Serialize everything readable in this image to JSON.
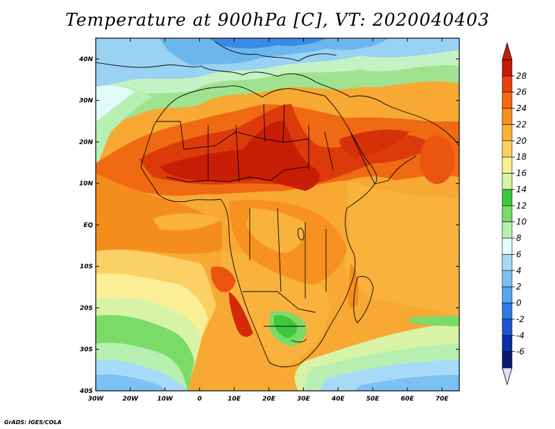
{
  "title": "Temperature at 900hPa [C], VT: 2020040403",
  "credit": "GrADS: IGES/COLA",
  "colors": {
    "ocean_south": "#5aa8e6",
    "ocean_mid": "#f5a430",
    "land_hot": "#d42a0a",
    "coast": "#000000"
  },
  "map": {
    "lon_labels": [
      "30W",
      "20W",
      "10W",
      "0",
      "10E",
      "20E",
      "30E",
      "40E",
      "50E",
      "60E",
      "70E"
    ],
    "lat_labels": [
      "40N",
      "30N",
      "20N",
      "10N",
      "EQ",
      "10S",
      "20S",
      "30S",
      "40S"
    ]
  },
  "colorbar": {
    "labels": [
      "28",
      "26",
      "24",
      "22",
      "20",
      "18",
      "16",
      "14",
      "12",
      "10",
      "8",
      "6",
      "4",
      "2",
      "0",
      "-2",
      "-4",
      "-6"
    ],
    "colors": [
      "#c41a06",
      "#e8400f",
      "#f36a12",
      "#f7911f",
      "#f9b23c",
      "#fbd065",
      "#fbee94",
      "#d9f3a6",
      "#3ec73d",
      "#7bdb67",
      "#b7efb0",
      "#e6fbfa",
      "#a6daf7",
      "#7dc0f4",
      "#55a6ef",
      "#2d7be3",
      "#1c55d0",
      "#0b2ea8",
      "#0a1a70"
    ],
    "top_arrow_color": "#c81e05",
    "bottom_arrow_color": "#dde0fb"
  }
}
